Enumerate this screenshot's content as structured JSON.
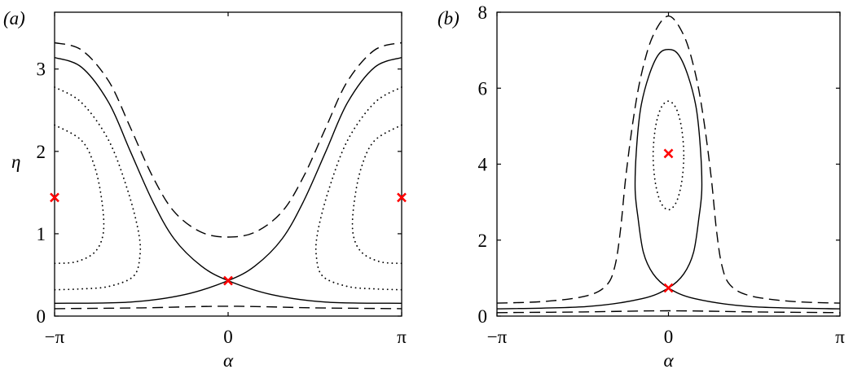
{
  "chart_data": [
    {
      "type": "line",
      "panel_label": "(a)",
      "xlabel": "α",
      "ylabel": "η",
      "xlim": [
        -3.1416,
        3.1416
      ],
      "ylim": [
        0,
        3.69
      ],
      "xticks": [
        {
          "value": -3.1416,
          "label": "−π"
        },
        {
          "value": 0,
          "label": "0"
        },
        {
          "value": 3.1416,
          "label": "π"
        }
      ],
      "yticks": [
        {
          "value": 0,
          "label": "0"
        },
        {
          "value": 1,
          "label": "1"
        },
        {
          "value": 2,
          "label": "2"
        },
        {
          "value": 3,
          "label": "3"
        }
      ],
      "grid": false,
      "line_color": "#000000",
      "marker_color": "#ff0000",
      "series": [
        {
          "style": "solid",
          "x": [
            -3.14,
            -2.65,
            -2.16,
            -1.77,
            -1.37,
            -0.98,
            -0.49,
            0,
            0.79,
            1.77,
            3.14
          ],
          "y": [
            3.14,
            3.02,
            2.59,
            2.0,
            1.4,
            0.94,
            0.61,
            0.43,
            0.26,
            0.17,
            0.155
          ]
        },
        {
          "style": "solid",
          "x": [
            3.14,
            2.65,
            2.16,
            1.77,
            1.37,
            0.98,
            0.49,
            0,
            -0.79,
            -1.77,
            -3.14
          ],
          "y": [
            3.14,
            3.02,
            2.59,
            2.0,
            1.4,
            0.94,
            0.61,
            0.43,
            0.26,
            0.17,
            0.155
          ]
        },
        {
          "style": "dashed",
          "x": [
            -3.14,
            -2.65,
            -2.16,
            -1.77,
            -1.37,
            -0.98,
            -0.49,
            0,
            0.49,
            0.98,
            1.37,
            1.77,
            2.16,
            2.65,
            3.14
          ],
          "y": [
            3.32,
            3.23,
            2.85,
            2.29,
            1.7,
            1.27,
            1.02,
            0.96,
            1.02,
            1.27,
            1.7,
            2.29,
            2.85,
            3.23,
            3.32
          ]
        },
        {
          "style": "dashed",
          "x": [
            -3.14,
            -1.57,
            0,
            1.57,
            3.14
          ],
          "y": [
            0.09,
            0.1,
            0.12,
            0.1,
            0.09
          ]
        },
        {
          "style": "dotted",
          "x": [
            -3.14,
            -2.65,
            -2.16,
            -1.82,
            -1.62,
            -1.6,
            -1.72,
            -2.16,
            -2.65,
            -3.14
          ],
          "y": [
            2.78,
            2.59,
            2.13,
            1.53,
            1.01,
            0.71,
            0.48,
            0.36,
            0.33,
            0.32
          ]
        },
        {
          "style": "dotted",
          "x": [
            -3.14,
            -2.65,
            -2.41,
            -2.28,
            -2.26,
            -2.41,
            -2.75,
            -3.14
          ],
          "y": [
            2.32,
            2.13,
            1.8,
            1.37,
            1.01,
            0.78,
            0.66,
            0.64
          ]
        },
        {
          "style": "dotted",
          "x": [
            3.14,
            2.65,
            2.16,
            1.82,
            1.62,
            1.6,
            1.72,
            2.16,
            2.65,
            3.14
          ],
          "y": [
            2.78,
            2.59,
            2.13,
            1.53,
            1.01,
            0.71,
            0.48,
            0.36,
            0.33,
            0.32
          ]
        },
        {
          "style": "dotted",
          "x": [
            3.14,
            2.65,
            2.41,
            2.28,
            2.26,
            2.41,
            2.75,
            3.14
          ],
          "y": [
            2.32,
            2.13,
            1.8,
            1.37,
            1.01,
            0.78,
            0.66,
            0.64
          ]
        }
      ],
      "fixed_points": [
        {
          "x": -3.1416,
          "y": 1.44
        },
        {
          "x": 3.1416,
          "y": 1.44
        },
        {
          "x": 0,
          "y": 0.43
        }
      ]
    },
    {
      "type": "line",
      "panel_label": "(b)",
      "xlabel": "α",
      "ylabel": "",
      "xlim": [
        -3.1416,
        3.1416
      ],
      "ylim": [
        0,
        8
      ],
      "xticks": [
        {
          "value": -3.1416,
          "label": "−π"
        },
        {
          "value": 0,
          "label": "0"
        },
        {
          "value": 3.1416,
          "label": "π"
        }
      ],
      "yticks": [
        {
          "value": 0,
          "label": "0"
        },
        {
          "value": 2,
          "label": "2"
        },
        {
          "value": 4,
          "label": "4"
        },
        {
          "value": 6,
          "label": "6"
        },
        {
          "value": 8,
          "label": "8"
        }
      ],
      "grid": false,
      "line_color": "#000000",
      "marker_color": "#ff0000",
      "series": [
        {
          "style": "solid",
          "x": [
            -3.14,
            -1.5,
            -0.48,
            0,
            0.28,
            0.46,
            0.56,
            0.61,
            0.59,
            0.51,
            0.36,
            0.18,
            0,
            -0.18,
            -0.36,
            -0.51,
            -0.59,
            -0.61,
            -0.56,
            -0.46,
            -0.28,
            0,
            0.48,
            1.5,
            3.14
          ],
          "y": [
            0.19,
            0.25,
            0.46,
            0.74,
            1.11,
            1.68,
            2.61,
            3.32,
            4.32,
            5.46,
            6.32,
            6.89,
            7.02,
            6.89,
            6.32,
            5.46,
            4.32,
            3.32,
            2.61,
            1.68,
            1.11,
            0.74,
            0.46,
            0.25,
            0.19
          ]
        },
        {
          "style": "dashed",
          "x": [
            -3.14,
            -2.23,
            -1.48,
            -1.13,
            -0.98,
            -0.88,
            -0.78,
            -0.63,
            -0.48,
            -0.28,
            0,
            0.28,
            0.48,
            0.63,
            0.78,
            0.88,
            0.98,
            1.13,
            1.48,
            2.23,
            3.14
          ],
          "y": [
            0.34,
            0.39,
            0.54,
            0.82,
            1.32,
            2.25,
            3.68,
            5.32,
            6.46,
            7.39,
            7.9,
            7.39,
            6.46,
            5.32,
            3.68,
            2.25,
            1.32,
            0.82,
            0.54,
            0.39,
            0.34
          ]
        },
        {
          "style": "dashed",
          "x": [
            -3.14,
            -1.57,
            0,
            1.57,
            3.14
          ],
          "y": [
            0.09,
            0.11,
            0.14,
            0.11,
            0.09
          ]
        },
        {
          "style": "dotted",
          "closed": true,
          "x": [
            0.28,
            0.24,
            0.14,
            0,
            -0.14,
            -0.24,
            -0.28,
            -0.24,
            -0.14,
            0,
            0.14,
            0.24
          ],
          "y": [
            4.23,
            4.95,
            5.47,
            5.66,
            5.47,
            4.95,
            4.23,
            3.51,
            2.99,
            2.8,
            2.99,
            3.51
          ]
        }
      ],
      "fixed_points": [
        {
          "x": 0,
          "y": 4.28
        },
        {
          "x": 0,
          "y": 0.74
        }
      ]
    }
  ]
}
